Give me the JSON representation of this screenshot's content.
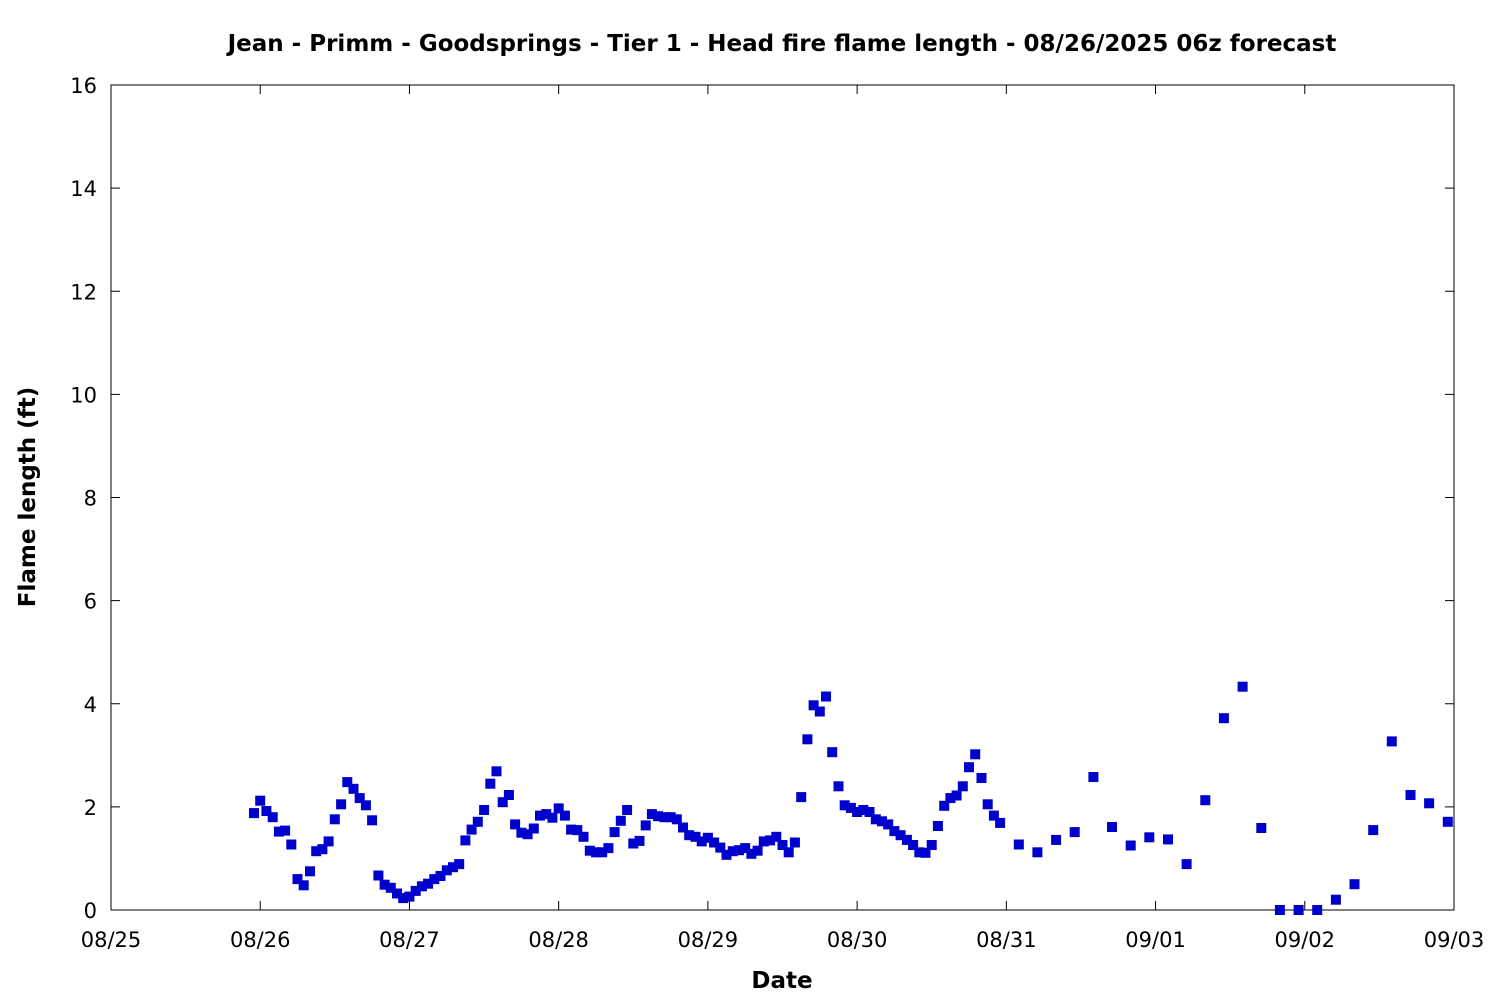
{
  "chart_data": {
    "type": "scatter",
    "title": "Jean - Primm - Goodsprings - Tier 1 - Head fire flame length - 08/26/2025 06z forecast",
    "xlabel": "Date",
    "ylabel": "Flame length (ft)",
    "x_ticks": [
      "08/25",
      "08/26",
      "08/27",
      "08/28",
      "08/29",
      "08/30",
      "08/31",
      "09/01",
      "09/02",
      "09/03"
    ],
    "y_ticks": [
      0,
      2,
      4,
      6,
      8,
      10,
      12,
      14,
      16
    ],
    "xlim": [
      "2025-08-25T00:00",
      "2025-09-03T00:00"
    ],
    "ylim": [
      0,
      16
    ],
    "grid": false,
    "legend": "none",
    "marker": "square",
    "color": "#0000cc",
    "series": [
      {
        "points": [
          [
            "2025-08-25T23:00",
            1.88
          ],
          [
            "2025-08-26T00:00",
            2.12
          ],
          [
            "2025-08-26T01:00",
            1.92
          ],
          [
            "2025-08-26T02:00",
            1.8
          ],
          [
            "2025-08-26T03:00",
            1.52
          ],
          [
            "2025-08-26T04:00",
            1.54
          ],
          [
            "2025-08-26T05:00",
            1.27
          ],
          [
            "2025-08-26T06:00",
            0.6
          ],
          [
            "2025-08-26T07:00",
            0.48
          ],
          [
            "2025-08-26T08:00",
            0.75
          ],
          [
            "2025-08-26T09:00",
            1.14
          ],
          [
            "2025-08-26T10:00",
            1.18
          ],
          [
            "2025-08-26T11:00",
            1.33
          ],
          [
            "2025-08-26T12:00",
            1.76
          ],
          [
            "2025-08-26T13:00",
            2.05
          ],
          [
            "2025-08-26T14:00",
            2.48
          ],
          [
            "2025-08-26T15:00",
            2.35
          ],
          [
            "2025-08-26T16:00",
            2.17
          ],
          [
            "2025-08-26T17:00",
            2.03
          ],
          [
            "2025-08-26T18:00",
            1.74
          ],
          [
            "2025-08-26T19:00",
            0.67
          ],
          [
            "2025-08-26T20:00",
            0.49
          ],
          [
            "2025-08-26T21:00",
            0.43
          ],
          [
            "2025-08-26T22:00",
            0.32
          ],
          [
            "2025-08-26T23:00",
            0.23
          ],
          [
            "2025-08-27T00:00",
            0.26
          ],
          [
            "2025-08-27T01:00",
            0.37
          ],
          [
            "2025-08-27T02:00",
            0.46
          ],
          [
            "2025-08-27T03:00",
            0.51
          ],
          [
            "2025-08-27T04:00",
            0.6
          ],
          [
            "2025-08-27T05:00",
            0.66
          ],
          [
            "2025-08-27T06:00",
            0.77
          ],
          [
            "2025-08-27T07:00",
            0.83
          ],
          [
            "2025-08-27T08:00",
            0.89
          ],
          [
            "2025-08-27T09:00",
            1.35
          ],
          [
            "2025-08-27T10:00",
            1.56
          ],
          [
            "2025-08-27T11:00",
            1.71
          ],
          [
            "2025-08-27T12:00",
            1.94
          ],
          [
            "2025-08-27T13:00",
            2.45
          ],
          [
            "2025-08-27T14:00",
            2.69
          ],
          [
            "2025-08-27T15:00",
            2.09
          ],
          [
            "2025-08-27T16:00",
            2.23
          ],
          [
            "2025-08-27T17:00",
            1.66
          ],
          [
            "2025-08-27T18:00",
            1.5
          ],
          [
            "2025-08-27T19:00",
            1.47
          ],
          [
            "2025-08-27T20:00",
            1.58
          ],
          [
            "2025-08-27T21:00",
            1.83
          ],
          [
            "2025-08-27T22:00",
            1.86
          ],
          [
            "2025-08-27T23:00",
            1.79
          ],
          [
            "2025-08-28T00:00",
            1.97
          ],
          [
            "2025-08-28T01:00",
            1.83
          ],
          [
            "2025-08-28T02:00",
            1.56
          ],
          [
            "2025-08-28T03:00",
            1.55
          ],
          [
            "2025-08-28T04:00",
            1.42
          ],
          [
            "2025-08-28T05:00",
            1.15
          ],
          [
            "2025-08-28T06:00",
            1.12
          ],
          [
            "2025-08-28T07:00",
            1.12
          ],
          [
            "2025-08-28T08:00",
            1.2
          ],
          [
            "2025-08-28T09:00",
            1.51
          ],
          [
            "2025-08-28T10:00",
            1.73
          ],
          [
            "2025-08-28T11:00",
            1.94
          ],
          [
            "2025-08-28T12:00",
            1.29
          ],
          [
            "2025-08-28T13:00",
            1.34
          ],
          [
            "2025-08-28T14:00",
            1.64
          ],
          [
            "2025-08-28T15:00",
            1.86
          ],
          [
            "2025-08-28T16:00",
            1.82
          ],
          [
            "2025-08-28T17:00",
            1.8
          ],
          [
            "2025-08-28T18:00",
            1.8
          ],
          [
            "2025-08-28T19:00",
            1.76
          ],
          [
            "2025-08-28T20:00",
            1.6
          ],
          [
            "2025-08-28T21:00",
            1.45
          ],
          [
            "2025-08-28T22:00",
            1.42
          ],
          [
            "2025-08-28T23:00",
            1.33
          ],
          [
            "2025-08-29T00:00",
            1.4
          ],
          [
            "2025-08-29T01:00",
            1.31
          ],
          [
            "2025-08-29T02:00",
            1.21
          ],
          [
            "2025-08-29T03:00",
            1.07
          ],
          [
            "2025-08-29T04:00",
            1.14
          ],
          [
            "2025-08-29T05:00",
            1.16
          ],
          [
            "2025-08-29T06:00",
            1.2
          ],
          [
            "2025-08-29T07:00",
            1.09
          ],
          [
            "2025-08-29T08:00",
            1.15
          ],
          [
            "2025-08-29T09:00",
            1.33
          ],
          [
            "2025-08-29T10:00",
            1.35
          ],
          [
            "2025-08-29T11:00",
            1.42
          ],
          [
            "2025-08-29T12:00",
            1.26
          ],
          [
            "2025-08-29T13:00",
            1.12
          ],
          [
            "2025-08-29T14:00",
            1.31
          ],
          [
            "2025-08-29T15:00",
            2.19
          ],
          [
            "2025-08-29T16:00",
            3.31
          ],
          [
            "2025-08-29T17:00",
            3.97
          ],
          [
            "2025-08-29T18:00",
            3.85
          ],
          [
            "2025-08-29T19:00",
            4.14
          ],
          [
            "2025-08-29T20:00",
            3.06
          ],
          [
            "2025-08-29T21:00",
            2.4
          ],
          [
            "2025-08-29T22:00",
            2.03
          ],
          [
            "2025-08-29T23:00",
            1.98
          ],
          [
            "2025-08-30T00:00",
            1.9
          ],
          [
            "2025-08-30T01:00",
            1.94
          ],
          [
            "2025-08-30T02:00",
            1.9
          ],
          [
            "2025-08-30T03:00",
            1.76
          ],
          [
            "2025-08-30T04:00",
            1.72
          ],
          [
            "2025-08-30T05:00",
            1.66
          ],
          [
            "2025-08-30T06:00",
            1.53
          ],
          [
            "2025-08-30T07:00",
            1.45
          ],
          [
            "2025-08-30T08:00",
            1.36
          ],
          [
            "2025-08-30T09:00",
            1.26
          ],
          [
            "2025-08-30T10:00",
            1.12
          ],
          [
            "2025-08-30T11:00",
            1.11
          ],
          [
            "2025-08-30T12:00",
            1.26
          ],
          [
            "2025-08-30T13:00",
            1.63
          ],
          [
            "2025-08-30T14:00",
            2.02
          ],
          [
            "2025-08-30T15:00",
            2.17
          ],
          [
            "2025-08-30T16:00",
            2.22
          ],
          [
            "2025-08-30T17:00",
            2.4
          ],
          [
            "2025-08-30T18:00",
            2.77
          ],
          [
            "2025-08-30T19:00",
            3.02
          ],
          [
            "2025-08-30T20:00",
            2.56
          ],
          [
            "2025-08-30T21:00",
            2.05
          ],
          [
            "2025-08-30T22:00",
            1.83
          ],
          [
            "2025-08-30T23:00",
            1.69
          ],
          [
            "2025-08-31T02:00",
            1.27
          ],
          [
            "2025-08-31T05:00",
            1.12
          ],
          [
            "2025-08-31T08:00",
            1.36
          ],
          [
            "2025-08-31T11:00",
            1.51
          ],
          [
            "2025-08-31T14:00",
            2.58
          ],
          [
            "2025-08-31T17:00",
            1.61
          ],
          [
            "2025-08-31T20:00",
            1.25
          ],
          [
            "2025-08-31T23:00",
            1.41
          ],
          [
            "2025-09-01T02:00",
            1.37
          ],
          [
            "2025-09-01T05:00",
            0.89
          ],
          [
            "2025-09-01T08:00",
            2.13
          ],
          [
            "2025-09-01T11:00",
            3.72
          ],
          [
            "2025-09-01T14:00",
            4.33
          ],
          [
            "2025-09-01T17:00",
            1.59
          ],
          [
            "2025-09-01T20:00",
            0.0
          ],
          [
            "2025-09-01T23:00",
            0.0
          ],
          [
            "2025-09-02T02:00",
            0.0
          ],
          [
            "2025-09-02T05:00",
            0.2
          ],
          [
            "2025-09-02T08:00",
            0.5
          ],
          [
            "2025-09-02T11:00",
            1.55
          ],
          [
            "2025-09-02T14:00",
            3.27
          ],
          [
            "2025-09-02T17:00",
            2.23
          ],
          [
            "2025-09-02T20:00",
            2.07
          ],
          [
            "2025-09-02T23:00",
            1.71
          ]
        ]
      }
    ]
  }
}
